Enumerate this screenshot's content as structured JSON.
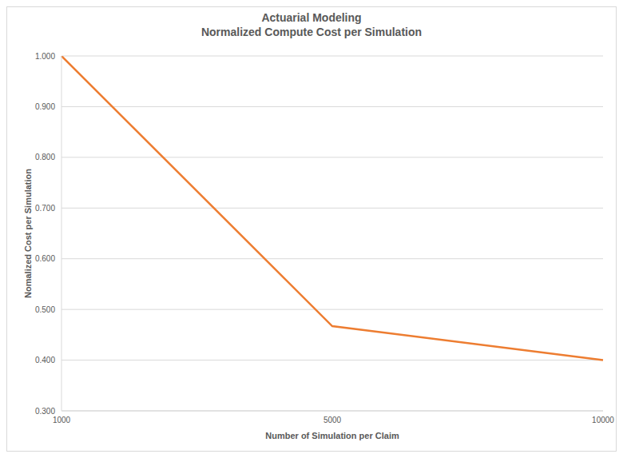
{
  "chart_data": {
    "type": "line",
    "title": "Actuarial Modeling",
    "subtitle": "Normalized Compute Cost per Simulation",
    "x_label": "Number of Simulation per Claim",
    "y_label": "Nomalized Cost per Simulation",
    "categories": [
      "1000",
      "5000",
      "10000"
    ],
    "values": [
      1.0,
      0.467,
      0.4
    ],
    "color": "#ed7d31",
    "marker": "none",
    "ylim": [
      0.3,
      1.0
    ],
    "yticks": [
      {
        "value": 0.3,
        "label": "0.300"
      },
      {
        "value": 0.4,
        "label": "0.400"
      },
      {
        "value": 0.5,
        "label": "0.500"
      },
      {
        "value": 0.6,
        "label": "0.600"
      },
      {
        "value": 0.7,
        "label": "0.700"
      },
      {
        "value": 0.8,
        "label": "0.800"
      },
      {
        "value": 0.9,
        "label": "0.900"
      },
      {
        "value": 1.0,
        "label": "1.000"
      }
    ],
    "grid": true
  }
}
